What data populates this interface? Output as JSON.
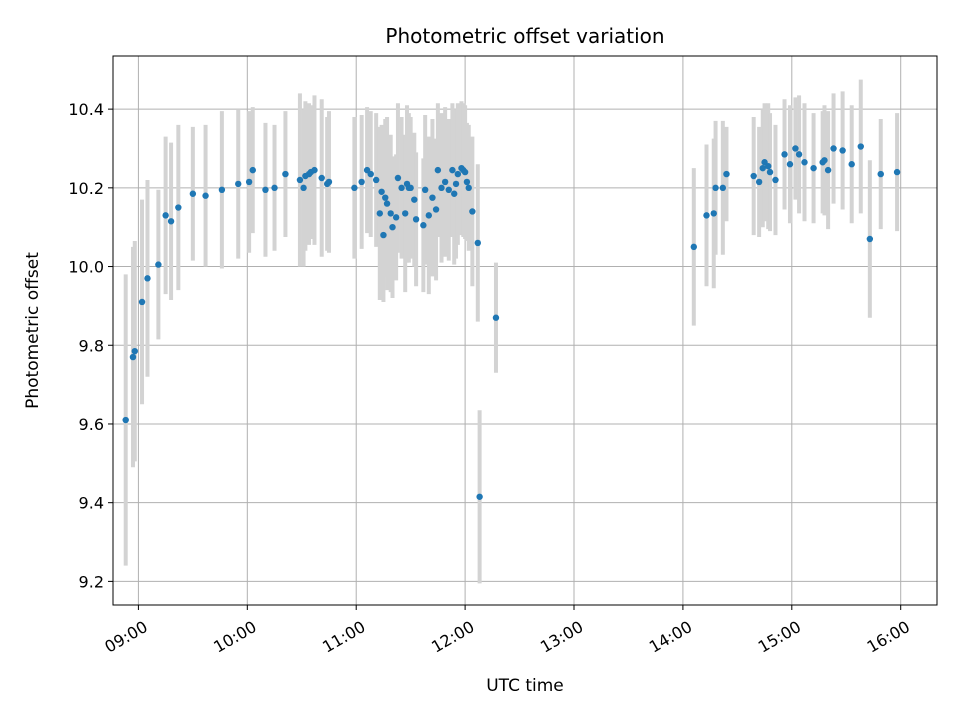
{
  "chart_data": {
    "type": "scatter",
    "title": "Photometric offset variation",
    "xlabel": "UTC time",
    "ylabel": "Photometric offset",
    "xlim": [
      "08:46",
      "16:20"
    ],
    "ylim": [
      9.14,
      10.535
    ],
    "x_ticks": [
      "09:00",
      "10:00",
      "11:00",
      "12:00",
      "13:00",
      "14:00",
      "15:00",
      "16:00"
    ],
    "y_ticks": [
      "9.2",
      "9.4",
      "9.6",
      "9.8",
      "10.0",
      "10.2",
      "10.4"
    ],
    "grid": true,
    "colors": {
      "marker": "#1f77b4",
      "errorbar": "#d3d3d3",
      "grid": "#b0b0b0"
    },
    "series": [
      {
        "x": [
          "08:53",
          "08:57",
          "08:58",
          "09:02",
          "09:05",
          "09:11",
          "09:15",
          "09:18",
          "09:22",
          "09:30",
          "09:37",
          "09:46",
          "09:55",
          "10:01",
          "10:03",
          "10:10",
          "10:15",
          "10:21",
          "10:29",
          "10:31",
          "10:32",
          "10:34",
          "10:35",
          "10:37",
          "10:41",
          "10:44",
          "10:45",
          "10:59",
          "11:03",
          "11:06",
          "11:08",
          "11:11",
          "11:13",
          "11:15",
          "11:14",
          "11:16",
          "11:17",
          "11:19",
          "11:20",
          "11:22",
          "11:23",
          "11:25",
          "11:27",
          "11:28",
          "11:29",
          "11:30",
          "11:32",
          "11:33",
          "11:37",
          "11:38",
          "11:40",
          "11:42",
          "11:44",
          "11:45",
          "11:47",
          "11:49",
          "11:51",
          "11:53",
          "11:54",
          "11:55",
          "11:56",
          "11:58",
          "11:59",
          "12:00",
          "12:01",
          "12:02",
          "12:04",
          "12:07",
          "12:08",
          "12:17",
          "14:06",
          "14:13",
          "14:17",
          "14:18",
          "14:22",
          "14:24",
          "14:39",
          "14:42",
          "14:44",
          "14:45",
          "14:47",
          "14:48",
          "14:51",
          "14:56",
          "14:59",
          "15:02",
          "15:04",
          "15:07",
          "15:12",
          "15:17",
          "15:18",
          "15:20",
          "15:23",
          "15:28",
          "15:33",
          "15:38",
          "15:43",
          "15:49",
          "15:58"
        ],
        "y": [
          9.61,
          9.77,
          9.785,
          9.91,
          9.97,
          10.005,
          10.13,
          10.115,
          10.15,
          10.185,
          10.18,
          10.195,
          10.21,
          10.215,
          10.245,
          10.195,
          10.2,
          10.235,
          10.22,
          10.2,
          10.23,
          10.235,
          10.24,
          10.245,
          10.225,
          10.21,
          10.215,
          10.2,
          10.215,
          10.245,
          10.235,
          10.22,
          10.135,
          10.08,
          10.19,
          10.175,
          10.16,
          10.135,
          10.1,
          10.125,
          10.225,
          10.2,
          10.135,
          10.21,
          10.2,
          10.2,
          10.17,
          10.12,
          10.105,
          10.195,
          10.13,
          10.175,
          10.145,
          10.245,
          10.2,
          10.215,
          10.195,
          10.245,
          10.185,
          10.21,
          10.235,
          10.25,
          10.245,
          10.24,
          10.215,
          10.2,
          10.14,
          10.06,
          9.415,
          9.87,
          10.05,
          10.13,
          10.135,
          10.2,
          10.2,
          10.235,
          10.23,
          10.215,
          10.25,
          10.265,
          10.255,
          10.24,
          10.22,
          10.285,
          10.26,
          10.3,
          10.285,
          10.265,
          10.25,
          10.265,
          10.27,
          10.245,
          10.3,
          10.295,
          10.26,
          10.305,
          10.07,
          10.235,
          10.24
        ],
        "err": [
          0.37,
          0.28,
          0.28,
          0.26,
          0.25,
          0.19,
          0.2,
          0.2,
          0.21,
          0.17,
          0.18,
          0.2,
          0.19,
          0.18,
          0.16,
          0.17,
          0.16,
          0.16,
          0.22,
          0.2,
          0.19,
          0.18,
          0.17,
          0.19,
          0.2,
          0.17,
          0.18,
          0.18,
          0.17,
          0.16,
          0.16,
          0.17,
          0.22,
          0.17,
          0.17,
          0.2,
          0.22,
          0.2,
          0.18,
          0.16,
          0.19,
          0.18,
          0.2,
          0.2,
          0.19,
          0.18,
          0.17,
          0.17,
          0.17,
          0.19,
          0.2,
          0.2,
          0.18,
          0.17,
          0.19,
          0.19,
          0.18,
          0.17,
          0.18,
          0.19,
          0.18,
          0.17,
          0.17,
          0.17,
          0.15,
          0.16,
          0.19,
          0.2,
          0.22,
          0.14,
          0.2,
          0.18,
          0.19,
          0.17,
          0.17,
          0.12,
          0.15,
          0.14,
          0.15,
          0.15,
          0.16,
          0.15,
          0.14,
          0.14,
          0.15,
          0.13,
          0.15,
          0.15,
          0.14,
          0.13,
          0.14,
          0.15,
          0.14,
          0.15,
          0.15,
          0.17,
          0.2,
          0.14,
          0.15
        ]
      }
    ]
  }
}
